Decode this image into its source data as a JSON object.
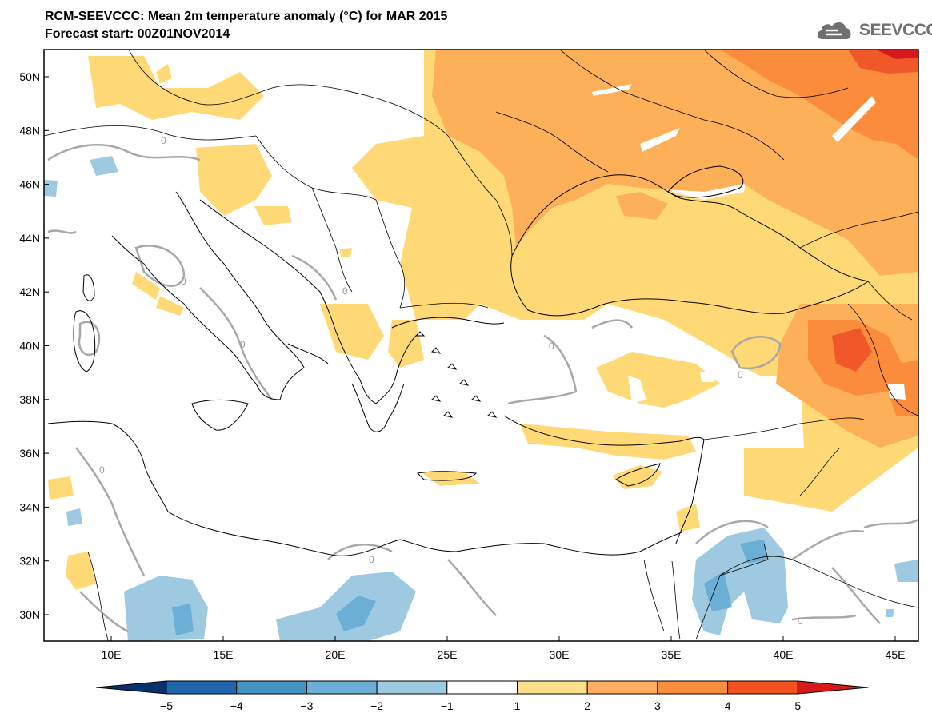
{
  "header": {
    "title": "RCM-SEEVCCC: Mean 2m temperature anomaly (°C) for MAR 2015",
    "subtitle": "Forecast start: 00Z01NOV2014",
    "logo_text": "SEEVCCC"
  },
  "map": {
    "lat_labels": [
      "50N",
      "48N",
      "46N",
      "44N",
      "42N",
      "40N",
      "38N",
      "36N",
      "34N",
      "32N",
      "30N"
    ],
    "lon_labels": [
      "10E",
      "15E",
      "20E",
      "25E",
      "30E",
      "35E",
      "40E",
      "45E"
    ],
    "contour_label": "0"
  },
  "legend": {
    "ticks": [
      "−5",
      "−4",
      "−3",
      "−2",
      "−1",
      "1",
      "2",
      "3",
      "4",
      "5"
    ],
    "colors": [
      "#08306b",
      "#2166ac",
      "#4393c3",
      "#6baed6",
      "#9ecae1",
      "#ffffff",
      "#fee08b",
      "#fdae61",
      "#f98e3e",
      "#f4511e",
      "#d7191c"
    ]
  },
  "colors": {
    "class_1_2": "#fed976",
    "class_2_3": "#fdb057",
    "class_3_4": "#fb8c3c",
    "class_4_5": "#f0582a",
    "class_gt_5": "#d7191c",
    "class_m1_m2": "#9ecae1",
    "class_m2_m3": "#6baed6",
    "contour": "#a8a8a8",
    "border": "#000000"
  }
}
